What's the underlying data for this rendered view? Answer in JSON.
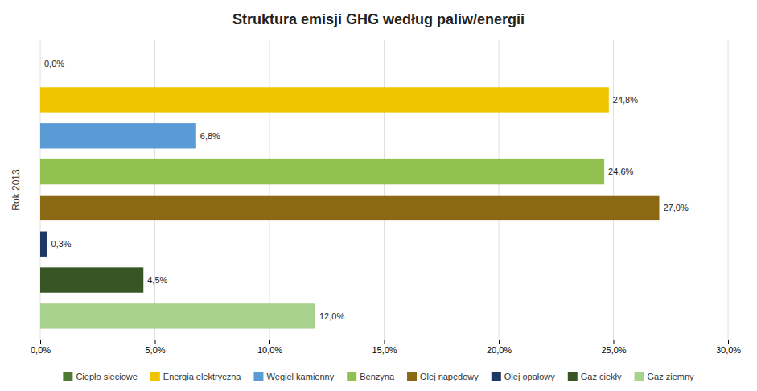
{
  "chart_data": {
    "type": "bar",
    "orientation": "horizontal",
    "title": "Struktura emisji GHG według paliw/energii",
    "ylabel": "Rok 2013",
    "categories": [
      "Ciepło sieciowe",
      "Energia elektryczna",
      "Węgiel kamienny",
      "Benzyna",
      "Olej napędowy",
      "Olej opałowy",
      "Gaz ciekły",
      "Gaz ziemny"
    ],
    "values": [
      0.0,
      24.8,
      6.8,
      24.6,
      27.0,
      0.3,
      4.5,
      12.0
    ],
    "value_labels": [
      "0,0%",
      "24,8%",
      "6,8%",
      "24,6%",
      "27,0%",
      "0,3%",
      "4,5%",
      "12,0%"
    ],
    "colors": [
      "#4e7a34",
      "#f0c500",
      "#5b9bd5",
      "#92c050",
      "#8b6914",
      "#1f3864",
      "#375623",
      "#a9d18e"
    ],
    "xlim": [
      0,
      30
    ],
    "xticks": [
      {
        "value": 0,
        "label": "0,0%"
      },
      {
        "value": 5,
        "label": "5,0%"
      },
      {
        "value": 10,
        "label": "10,0%"
      },
      {
        "value": 15,
        "label": "15,0%"
      },
      {
        "value": 20,
        "label": "20,0%"
      },
      {
        "value": 25,
        "label": "25,0%"
      },
      {
        "value": 30,
        "label": "30,0%"
      }
    ],
    "grid": true,
    "legend": "bottom",
    "data_labels": true,
    "tick_labels": "x"
  }
}
